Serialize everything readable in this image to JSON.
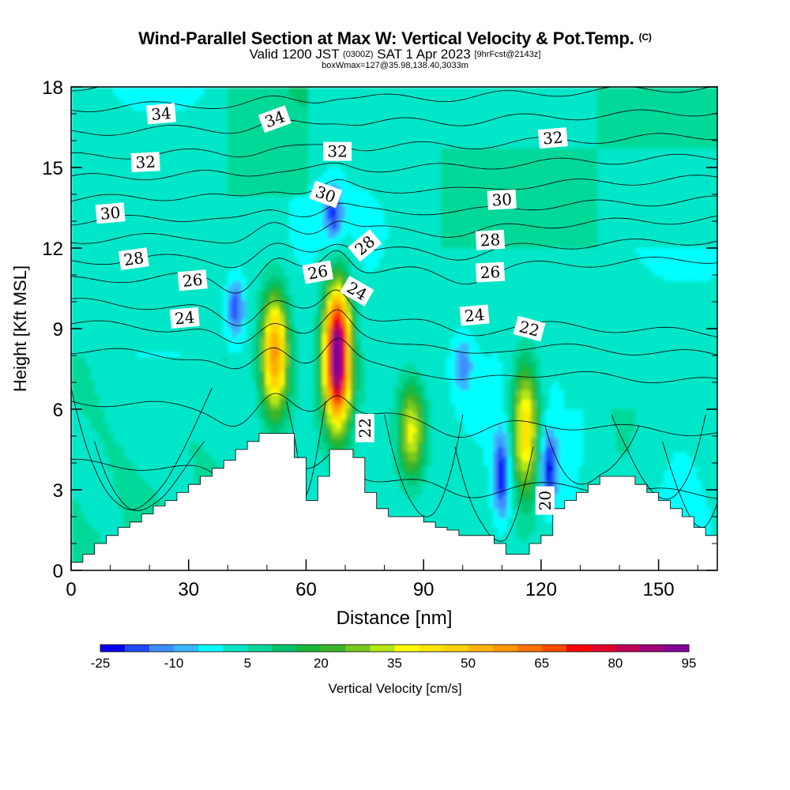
{
  "title": {
    "main": "Wind-Parallel Section at Max W: Vertical Velocity & Pot.Temp.",
    "copyright": "(C)",
    "valid_prefix": "Valid 1200 JST",
    "valid_zulu": "(0300Z)",
    "valid_date": "SAT 1 Apr 2023",
    "forecast": "[9hrFcst@2143z]",
    "subline": "boxWmax=127@35.98,138.40,3033m"
  },
  "chart_data": {
    "type": "heatmap",
    "xlabel": "Distance [nm]",
    "ylabel": "Height [Kft MSL]",
    "xlim": [
      0,
      165
    ],
    "ylim": [
      0,
      18
    ],
    "x_ticks": [
      "0",
      "30",
      "60",
      "90",
      "120",
      "150"
    ],
    "y_ticks": [
      "0",
      "3",
      "6",
      "9",
      "12",
      "15",
      "18"
    ],
    "colorbar": {
      "title": "Vertical Velocity [cm/s]",
      "levels": [
        -25,
        -20,
        -15,
        -10,
        -5,
        0,
        5,
        10,
        15,
        20,
        25,
        30,
        35,
        40,
        45,
        50,
        55,
        60,
        65,
        70,
        75,
        80,
        85,
        90,
        95
      ],
      "tick_labels": [
        "-25",
        "-10",
        "5",
        "20",
        "35",
        "50",
        "65",
        "80",
        "95"
      ],
      "colors": [
        "#0000ee",
        "#1f4cff",
        "#3f8dff",
        "#39b8ff",
        "#00ffff",
        "#00e6c8",
        "#00d898",
        "#00c36c",
        "#19b83c",
        "#3cb42c",
        "#78c81e",
        "#b4e614",
        "#ffff00",
        "#ffe600",
        "#ffd200",
        "#ffb400",
        "#ff9600",
        "#ff7300",
        "#ff4b00",
        "#ff0000",
        "#e1002d",
        "#be0055",
        "#a00078",
        "#800096"
      ]
    },
    "updraft_cores": [
      {
        "x_nm": 52,
        "base_kft": 5.0,
        "top_kft": 11.2,
        "peak_cm_s": 55
      },
      {
        "x_nm": 68,
        "base_kft": 4.5,
        "top_kft": 11.5,
        "peak_cm_s": 95
      },
      {
        "x_nm": 87,
        "base_kft": 2.8,
        "top_kft": 7.5,
        "peak_cm_s": 35
      },
      {
        "x_nm": 116,
        "base_kft": 2.0,
        "top_kft": 8.5,
        "peak_cm_s": 45
      }
    ],
    "downdraft_cores": [
      {
        "x_nm": 42,
        "base_kft": 8.5,
        "top_kft": 11.0,
        "peak_cm_s": -20
      },
      {
        "x_nm": 67,
        "base_kft": 12.0,
        "top_kft": 14.5,
        "peak_cm_s": -20
      },
      {
        "x_nm": 100,
        "base_kft": 6.5,
        "top_kft": 8.8,
        "peak_cm_s": -15
      },
      {
        "x_nm": 110,
        "base_kft": 1.5,
        "top_kft": 5.5,
        "peak_cm_s": -25
      },
      {
        "x_nm": 122,
        "base_kft": 2.0,
        "top_kft": 5.5,
        "peak_cm_s": -25
      }
    ],
    "theta_contours": [
      {
        "value": 20,
        "label": "20"
      },
      {
        "value": 22,
        "label": "22"
      },
      {
        "value": 24,
        "label": "24"
      },
      {
        "value": 26,
        "label": "26"
      },
      {
        "value": 28,
        "label": "28"
      },
      {
        "value": 30,
        "label": "30"
      },
      {
        "value": 32,
        "label": "32"
      },
      {
        "value": 34,
        "label": "34"
      }
    ],
    "contour_labels": [
      {
        "text": "34",
        "x_nm": 23,
        "y_kft": 17.0,
        "rot": -5
      },
      {
        "text": "34",
        "x_nm": 52,
        "y_kft": 16.8,
        "rot": -20
      },
      {
        "text": "32",
        "x_nm": 19,
        "y_kft": 15.2,
        "rot": -3
      },
      {
        "text": "32",
        "x_nm": 68,
        "y_kft": 15.6,
        "rot": 0
      },
      {
        "text": "32",
        "x_nm": 123,
        "y_kft": 16.1,
        "rot": -5
      },
      {
        "text": "30",
        "x_nm": 10,
        "y_kft": 13.3,
        "rot": -5
      },
      {
        "text": "30",
        "x_nm": 65,
        "y_kft": 14.0,
        "rot": 20
      },
      {
        "text": "30",
        "x_nm": 110,
        "y_kft": 13.8,
        "rot": -3
      },
      {
        "text": "28",
        "x_nm": 16,
        "y_kft": 11.6,
        "rot": -8
      },
      {
        "text": "28",
        "x_nm": 75,
        "y_kft": 12.1,
        "rot": -40
      },
      {
        "text": "28",
        "x_nm": 107,
        "y_kft": 12.3,
        "rot": -3
      },
      {
        "text": "26",
        "x_nm": 31,
        "y_kft": 10.8,
        "rot": -5
      },
      {
        "text": "26",
        "x_nm": 63,
        "y_kft": 11.1,
        "rot": -10
      },
      {
        "text": "26",
        "x_nm": 107,
        "y_kft": 11.1,
        "rot": -3
      },
      {
        "text": "24",
        "x_nm": 29,
        "y_kft": 9.4,
        "rot": -5
      },
      {
        "text": "24",
        "x_nm": 73,
        "y_kft": 10.4,
        "rot": 30
      },
      {
        "text": "24",
        "x_nm": 103,
        "y_kft": 9.5,
        "rot": -5
      },
      {
        "text": "22",
        "x_nm": 117,
        "y_kft": 9.0,
        "rot": 15
      },
      {
        "text": "22",
        "x_nm": 75,
        "y_kft": 5.3,
        "rot": -90
      },
      {
        "text": "20",
        "x_nm": 121,
        "y_kft": 2.6,
        "rot": -90
      }
    ],
    "terrain_kft": [
      {
        "x": 0,
        "y": 0.3
      },
      {
        "x": 3,
        "y": 0.6
      },
      {
        "x": 6,
        "y": 1.0
      },
      {
        "x": 9,
        "y": 1.3
      },
      {
        "x": 12,
        "y": 1.6
      },
      {
        "x": 15,
        "y": 1.8
      },
      {
        "x": 18,
        "y": 2.1
      },
      {
        "x": 21,
        "y": 2.4
      },
      {
        "x": 24,
        "y": 2.6
      },
      {
        "x": 27,
        "y": 2.9
      },
      {
        "x": 30,
        "y": 3.2
      },
      {
        "x": 33,
        "y": 3.5
      },
      {
        "x": 36,
        "y": 3.8
      },
      {
        "x": 39,
        "y": 4.1
      },
      {
        "x": 42,
        "y": 4.5
      },
      {
        "x": 45,
        "y": 4.8
      },
      {
        "x": 48,
        "y": 5.1
      },
      {
        "x": 51,
        "y": 5.1
      },
      {
        "x": 54,
        "y": 5.1
      },
      {
        "x": 57,
        "y": 4.2
      },
      {
        "x": 60,
        "y": 2.6
      },
      {
        "x": 63,
        "y": 3.5
      },
      {
        "x": 66,
        "y": 4.5
      },
      {
        "x": 69,
        "y": 4.5
      },
      {
        "x": 72,
        "y": 4.2
      },
      {
        "x": 75,
        "y": 2.9
      },
      {
        "x": 78,
        "y": 2.3
      },
      {
        "x": 81,
        "y": 2.0
      },
      {
        "x": 84,
        "y": 2.0
      },
      {
        "x": 87,
        "y": 2.0
      },
      {
        "x": 90,
        "y": 1.8
      },
      {
        "x": 93,
        "y": 1.6
      },
      {
        "x": 96,
        "y": 1.5
      },
      {
        "x": 99,
        "y": 1.3
      },
      {
        "x": 102,
        "y": 1.3
      },
      {
        "x": 105,
        "y": 1.3
      },
      {
        "x": 108,
        "y": 1.0
      },
      {
        "x": 111,
        "y": 0.6
      },
      {
        "x": 114,
        "y": 0.6
      },
      {
        "x": 117,
        "y": 1.0
      },
      {
        "x": 120,
        "y": 1.3
      },
      {
        "x": 123,
        "y": 2.3
      },
      {
        "x": 126,
        "y": 2.6
      },
      {
        "x": 129,
        "y": 2.9
      },
      {
        "x": 132,
        "y": 3.2
      },
      {
        "x": 135,
        "y": 3.5
      },
      {
        "x": 138,
        "y": 3.5
      },
      {
        "x": 141,
        "y": 3.5
      },
      {
        "x": 144,
        "y": 3.2
      },
      {
        "x": 147,
        "y": 2.9
      },
      {
        "x": 150,
        "y": 2.6
      },
      {
        "x": 153,
        "y": 2.3
      },
      {
        "x": 156,
        "y": 2.0
      },
      {
        "x": 159,
        "y": 1.6
      },
      {
        "x": 162,
        "y": 1.3
      },
      {
        "x": 165,
        "y": 1.3
      }
    ]
  }
}
